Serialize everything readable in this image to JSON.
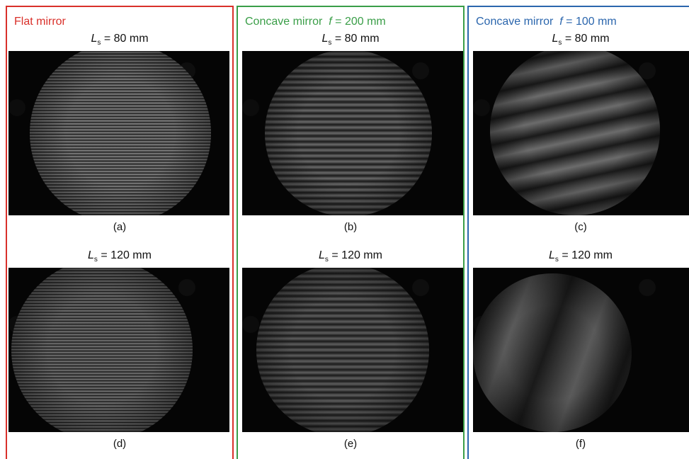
{
  "panels": [
    {
      "title": "Flat mirror",
      "images": [
        {
          "label_var": "L",
          "label_sub": "s",
          "label_text": "= 80 mm",
          "caption": "(a)"
        },
        {
          "label_var": "L",
          "label_sub": "s",
          "label_text": "= 120 mm",
          "caption": "(d)"
        }
      ]
    },
    {
      "title": "Concave mirror",
      "focal_var": "f",
      "focal_text": "= 200 mm",
      "images": [
        {
          "label_var": "L",
          "label_sub": "s",
          "label_text": "= 80 mm",
          "caption": "(b)"
        },
        {
          "label_var": "L",
          "label_sub": "s",
          "label_text": "= 120 mm",
          "caption": "(e)"
        }
      ]
    },
    {
      "title": "Concave mirror",
      "focal_var": "f",
      "focal_text": "= 100 mm",
      "images": [
        {
          "label_var": "L",
          "label_sub": "s",
          "label_text": "= 80 mm",
          "caption": "(c)"
        },
        {
          "label_var": "L",
          "label_sub": "s",
          "label_text": "= 120 mm",
          "caption": "(f)"
        }
      ]
    }
  ]
}
